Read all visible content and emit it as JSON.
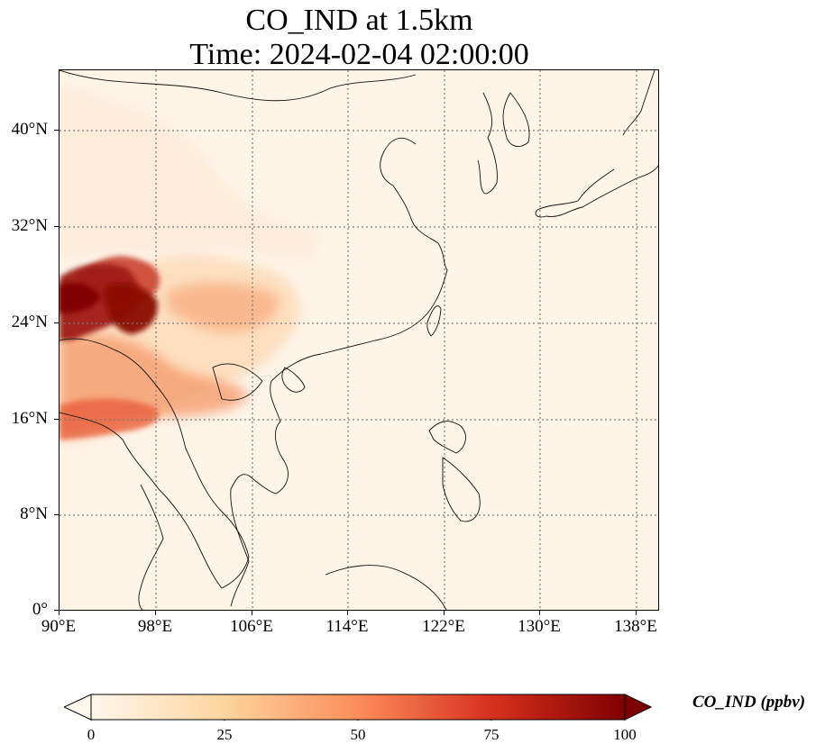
{
  "title": {
    "line1": "CO_IND at 1.5km",
    "line2": "Time: 2024-02-04 02:00:00"
  },
  "map": {
    "lon_range": [
      90,
      140
    ],
    "lat_range": [
      0,
      45
    ],
    "grid": true,
    "lon_ticks": [
      "90°E",
      "98°E",
      "106°E",
      "114°E",
      "122°E",
      "130°E",
      "138°E"
    ],
    "lat_ticks": [
      "0°",
      "8°N",
      "16°N",
      "24°N",
      "32°N",
      "40°N"
    ]
  },
  "colorbar": {
    "label": "CO_IND (ppbv)",
    "ticks": [
      "0",
      "25",
      "50",
      "75",
      "100"
    ],
    "range": [
      0,
      100
    ],
    "colormap": "OrRd",
    "extend": "both",
    "colors": [
      "#fff7ec",
      "#fdd49e",
      "#fc8d59",
      "#d7301f",
      "#7f0000"
    ]
  }
}
